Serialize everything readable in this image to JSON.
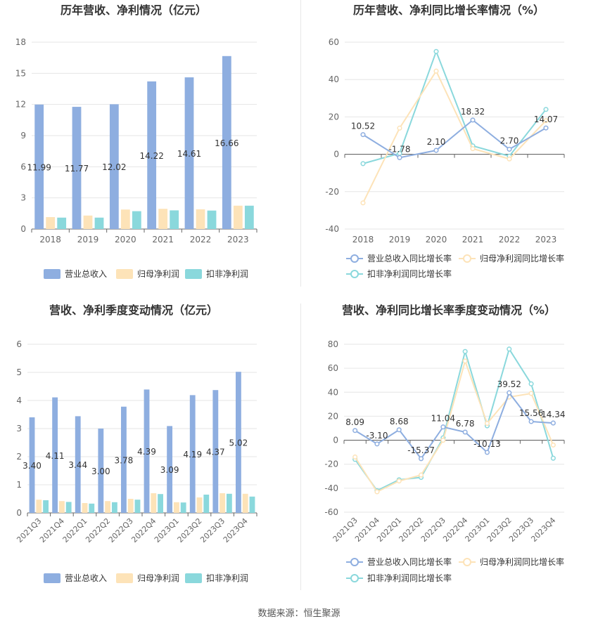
{
  "footer": "数据来源：恒生聚源",
  "chart_data": [
    {
      "id": "annual-bar",
      "type": "bar",
      "title": "历年营收、净利情况（亿元）",
      "categories": [
        "2018",
        "2019",
        "2020",
        "2021",
        "2022",
        "2023"
      ],
      "ylim": [
        0,
        18
      ],
      "yticks": [
        0,
        3,
        6,
        9,
        12,
        15,
        18
      ],
      "grid": true,
      "legend": "bottom",
      "series": [
        {
          "name": "营业总收入",
          "color": "#8eaee0",
          "values": [
            11.99,
            11.77,
            12.02,
            14.22,
            14.61,
            16.66
          ],
          "labels": [
            "11.99",
            "11.77",
            "12.02",
            "14.22",
            "14.61",
            "16.66"
          ]
        },
        {
          "name": "归母净利润",
          "color": "#fde3b8",
          "values": [
            1.15,
            1.3,
            1.88,
            1.95,
            1.9,
            2.25
          ]
        },
        {
          "name": "扣非净利润",
          "color": "#8ad8dc",
          "values": [
            1.1,
            1.1,
            1.72,
            1.8,
            1.78,
            2.25
          ]
        }
      ]
    },
    {
      "id": "annual-line",
      "type": "line",
      "title": "历年营收、净利同比增长率情况（%）",
      "categories": [
        "2018",
        "2019",
        "2020",
        "2021",
        "2022",
        "2023"
      ],
      "ylim": [
        -40,
        60
      ],
      "yticks": [
        -40,
        -20,
        0,
        20,
        40,
        60
      ],
      "grid": true,
      "legend": "bottom",
      "series": [
        {
          "name": "营业总收入同比增长率",
          "color": "#8eaee0",
          "values": [
            10.52,
            -1.78,
            2.1,
            18.32,
            2.7,
            14.07
          ],
          "labels": [
            "10.52",
            "-1.78",
            "2.10",
            "18.32",
            "2.70",
            "14.07"
          ]
        },
        {
          "name": "归母净利润同比增长率",
          "color": "#fde3b8",
          "values": [
            -26.0,
            14.0,
            44.5,
            3.0,
            -2.5,
            18.0
          ]
        },
        {
          "name": "扣非净利润同比增长率",
          "color": "#8ad8dc",
          "values": [
            -5.0,
            0.5,
            55.0,
            4.5,
            -1.0,
            24.0
          ]
        }
      ]
    },
    {
      "id": "quarter-bar",
      "type": "bar",
      "title": "营收、净利季度变动情况（亿元）",
      "categories": [
        "2021Q3",
        "2021Q4",
        "2022Q1",
        "2022Q2",
        "2022Q3",
        "2022Q4",
        "2023Q1",
        "2023Q2",
        "2023Q3",
        "2023Q4"
      ],
      "ylim": [
        0,
        6
      ],
      "yticks": [
        0,
        1,
        2,
        3,
        4,
        5,
        6
      ],
      "grid": true,
      "legend": "bottom",
      "series": [
        {
          "name": "营业总收入",
          "color": "#8eaee0",
          "values": [
            3.4,
            4.11,
            3.44,
            3.0,
            3.78,
            4.39,
            3.09,
            4.19,
            4.37,
            5.02
          ],
          "labels": [
            "3.40",
            "4.11",
            "3.44",
            "3.00",
            "3.78",
            "4.39",
            "3.09",
            "4.19",
            "4.37",
            "5.02"
          ]
        },
        {
          "name": "归母净利润",
          "color": "#fde3b8",
          "values": [
            0.47,
            0.42,
            0.35,
            0.42,
            0.5,
            0.7,
            0.38,
            0.55,
            0.7,
            0.68
          ]
        },
        {
          "name": "扣非净利润",
          "color": "#8ad8dc",
          "values": [
            0.45,
            0.39,
            0.33,
            0.38,
            0.47,
            0.67,
            0.37,
            0.65,
            0.68,
            0.58
          ]
        }
      ]
    },
    {
      "id": "quarter-line",
      "type": "line",
      "title": "营收、净利同比增长率季度变动情况（%）",
      "categories": [
        "2021Q3",
        "2021Q4",
        "2022Q1",
        "2022Q2",
        "2022Q3",
        "2022Q4",
        "2023Q1",
        "2023Q2",
        "2023Q3",
        "2023Q4"
      ],
      "ylim": [
        -60,
        80
      ],
      "yticks": [
        -60,
        -40,
        -20,
        0,
        20,
        40,
        60,
        80
      ],
      "grid": true,
      "legend": "bottom",
      "series": [
        {
          "name": "营业总收入同比增长率",
          "color": "#8eaee0",
          "values": [
            8.09,
            -3.1,
            8.68,
            -15.37,
            11.04,
            6.78,
            -10.13,
            39.52,
            15.56,
            14.34
          ],
          "labels": [
            "8.09",
            "-3.10",
            "8.68",
            "-15.37",
            "11.04",
            "6.78",
            "-10.13",
            "39.52",
            "15.56",
            "14.34"
          ]
        },
        {
          "name": "归母净利润同比增长率",
          "color": "#fde3b8",
          "values": [
            -14.0,
            -43.0,
            -34.0,
            -29.0,
            0.0,
            66.0,
            14.0,
            36.0,
            39.0,
            -4.0
          ]
        },
        {
          "name": "扣非净利润同比增长率",
          "color": "#8ad8dc",
          "values": [
            -16.0,
            -42.0,
            -33.0,
            -31.0,
            2.0,
            74.0,
            12.0,
            76.0,
            47.0,
            -15.0
          ]
        }
      ]
    }
  ]
}
